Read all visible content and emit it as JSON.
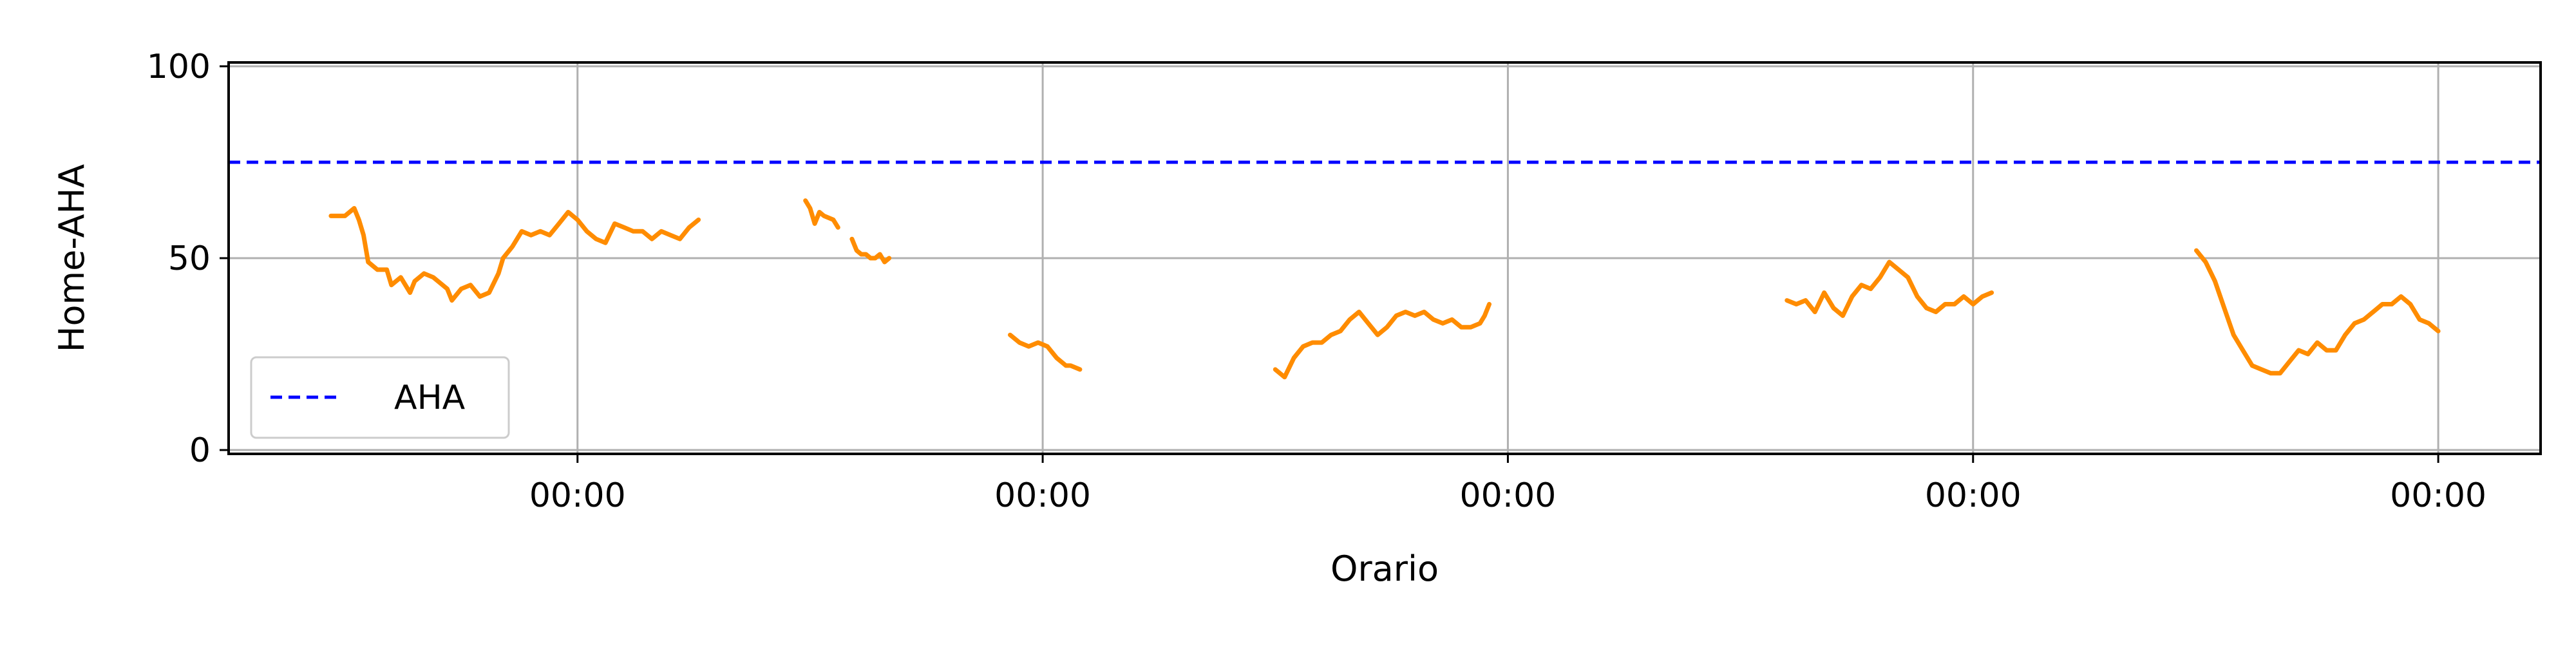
{
  "chart_data": {
    "type": "line",
    "title": "",
    "xlabel": "Orario",
    "ylabel": "Home-AHA",
    "ylim": [
      -1,
      101
    ],
    "xlim": [
      -0.75,
      4.22
    ],
    "yticks": [
      0,
      50,
      100
    ],
    "xticks": [
      0,
      1,
      2,
      3,
      4
    ],
    "xtick_labels": [
      "00:00",
      "00:00",
      "00:00",
      "00:00",
      "00:00"
    ],
    "grid": true,
    "legend": {
      "position": "lower-left",
      "entries": [
        "AHA"
      ]
    },
    "reference_lines": [
      {
        "name": "AHA",
        "y": 75,
        "color": "#0000ff",
        "style": "dashed"
      }
    ],
    "series_color": "#ff8c00",
    "series": [
      {
        "values": [
          [
            -0.53,
            61
          ],
          [
            -0.5,
            61
          ],
          [
            -0.48,
            63
          ],
          [
            -0.47,
            60
          ],
          [
            -0.46,
            56
          ],
          [
            -0.45,
            49
          ],
          [
            -0.43,
            47
          ],
          [
            -0.41,
            47
          ],
          [
            -0.4,
            43
          ],
          [
            -0.38,
            45
          ],
          [
            -0.36,
            41
          ],
          [
            -0.35,
            44
          ],
          [
            -0.33,
            46
          ],
          [
            -0.31,
            45
          ],
          [
            -0.3,
            44
          ],
          [
            -0.28,
            42
          ],
          [
            -0.27,
            39
          ],
          [
            -0.25,
            42
          ],
          [
            -0.23,
            43
          ],
          [
            -0.21,
            40
          ],
          [
            -0.19,
            41
          ],
          [
            -0.17,
            46
          ],
          [
            -0.16,
            50
          ],
          [
            -0.14,
            53
          ],
          [
            -0.12,
            57
          ],
          [
            -0.1,
            56
          ],
          [
            -0.08,
            57
          ],
          [
            -0.06,
            56
          ],
          [
            -0.04,
            59
          ],
          [
            -0.02,
            62
          ],
          [
            0,
            60
          ],
          [
            0.02,
            57
          ],
          [
            0.04,
            55
          ],
          [
            0.06,
            54
          ],
          [
            0.08,
            59
          ],
          [
            0.1,
            58
          ],
          [
            0.12,
            57
          ],
          [
            0.14,
            57
          ],
          [
            0.16,
            55
          ],
          [
            0.18,
            57
          ],
          [
            0.2,
            56
          ],
          [
            0.22,
            55
          ],
          [
            0.24,
            58
          ],
          [
            0.25,
            59
          ],
          [
            0.26,
            60
          ]
        ]
      },
      {
        "values": [
          [
            0.49,
            65
          ],
          [
            0.5,
            63
          ],
          [
            0.51,
            59
          ],
          [
            0.52,
            62
          ],
          [
            0.53,
            61
          ],
          [
            0.55,
            60
          ],
          [
            0.56,
            58
          ]
        ]
      },
      {
        "values": [
          [
            0.59,
            55
          ],
          [
            0.6,
            52
          ],
          [
            0.61,
            51
          ],
          [
            0.62,
            51
          ],
          [
            0.63,
            50
          ],
          [
            0.64,
            50
          ],
          [
            0.65,
            51
          ],
          [
            0.66,
            49
          ],
          [
            0.67,
            50
          ]
        ]
      },
      {
        "values": [
          [
            0.93,
            30
          ],
          [
            0.95,
            28
          ],
          [
            0.97,
            27
          ],
          [
            0.99,
            28
          ],
          [
            1.01,
            27
          ],
          [
            1.03,
            24
          ],
          [
            1.05,
            22
          ],
          [
            1.06,
            22
          ],
          [
            1.08,
            21
          ]
        ]
      },
      {
        "values": [
          [
            1.5,
            21
          ],
          [
            1.52,
            19
          ],
          [
            1.54,
            24
          ],
          [
            1.56,
            27
          ],
          [
            1.58,
            28
          ],
          [
            1.6,
            28
          ],
          [
            1.62,
            30
          ],
          [
            1.64,
            31
          ],
          [
            1.66,
            34
          ],
          [
            1.68,
            36
          ],
          [
            1.7,
            33
          ],
          [
            1.72,
            30
          ],
          [
            1.74,
            32
          ],
          [
            1.76,
            35
          ],
          [
            1.78,
            36
          ],
          [
            1.8,
            35
          ],
          [
            1.82,
            36
          ],
          [
            1.84,
            34
          ],
          [
            1.86,
            33
          ],
          [
            1.88,
            34
          ],
          [
            1.9,
            32
          ],
          [
            1.92,
            32
          ],
          [
            1.94,
            33
          ],
          [
            1.95,
            35
          ],
          [
            1.96,
            38
          ]
        ]
      },
      {
        "values": [
          [
            2.6,
            39
          ],
          [
            2.62,
            38
          ],
          [
            2.64,
            39
          ],
          [
            2.66,
            36
          ],
          [
            2.68,
            41
          ],
          [
            2.7,
            37
          ],
          [
            2.72,
            35
          ],
          [
            2.74,
            40
          ],
          [
            2.76,
            43
          ],
          [
            2.78,
            42
          ],
          [
            2.8,
            45
          ],
          [
            2.82,
            49
          ],
          [
            2.84,
            47
          ],
          [
            2.86,
            45
          ],
          [
            2.88,
            40
          ],
          [
            2.9,
            37
          ],
          [
            2.92,
            36
          ],
          [
            2.94,
            38
          ],
          [
            2.96,
            38
          ],
          [
            2.98,
            40
          ],
          [
            3,
            38
          ],
          [
            3.02,
            40
          ],
          [
            3.04,
            41
          ]
        ]
      },
      {
        "values": [
          [
            3.48,
            52
          ],
          [
            3.5,
            49
          ],
          [
            3.52,
            44
          ],
          [
            3.54,
            37
          ],
          [
            3.56,
            30
          ],
          [
            3.58,
            26
          ],
          [
            3.6,
            22
          ],
          [
            3.62,
            21
          ],
          [
            3.64,
            20
          ],
          [
            3.66,
            20
          ],
          [
            3.68,
            23
          ],
          [
            3.7,
            26
          ],
          [
            3.72,
            25
          ],
          [
            3.74,
            28
          ],
          [
            3.76,
            26
          ],
          [
            3.78,
            26
          ],
          [
            3.8,
            30
          ],
          [
            3.82,
            33
          ],
          [
            3.84,
            34
          ],
          [
            3.86,
            36
          ],
          [
            3.88,
            38
          ],
          [
            3.9,
            38
          ],
          [
            3.92,
            40
          ],
          [
            3.94,
            38
          ],
          [
            3.96,
            34
          ],
          [
            3.98,
            33
          ],
          [
            4,
            31
          ]
        ]
      }
    ]
  }
}
